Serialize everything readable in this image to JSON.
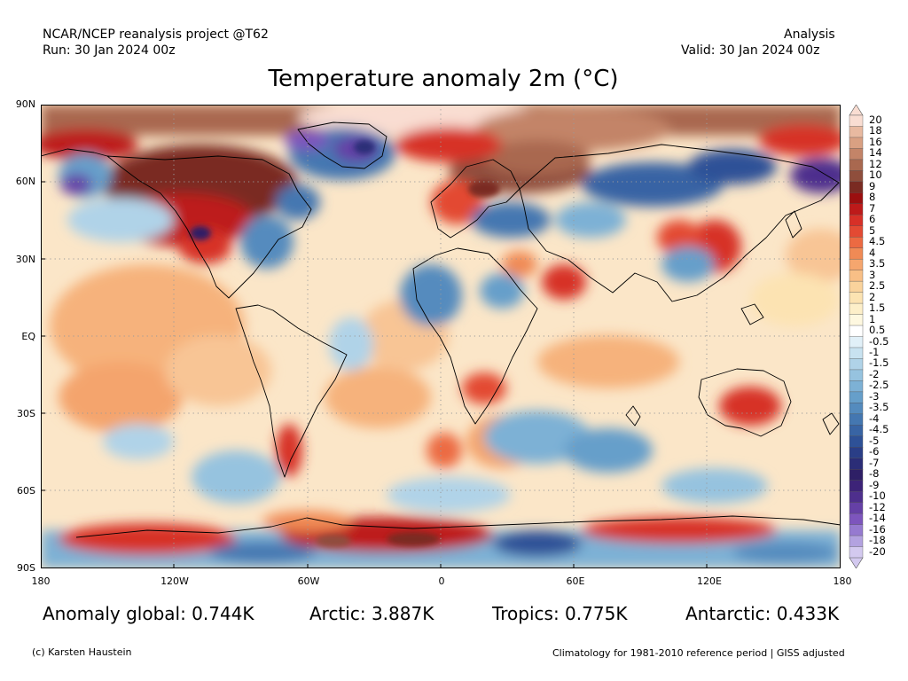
{
  "header": {
    "project": "NCAR/NCEP reanalysis project @T62",
    "run": "Run: 30 Jan 2024 00z",
    "kind": "Analysis",
    "valid": "Valid: 30 Jan 2024 00z",
    "title": "Temperature anomaly 2m (°C)"
  },
  "map": {
    "lat_ticks": [
      "90N",
      "60N",
      "30N",
      "EQ",
      "30S",
      "60S",
      "90S"
    ],
    "lon_ticks": [
      "180",
      "120W",
      "60W",
      "0",
      "60E",
      "120E",
      "180"
    ],
    "lat_range": [
      -90,
      90
    ],
    "lon_range": [
      -180,
      180
    ],
    "gridlines": "dotted every 30°"
  },
  "colorbar": {
    "labels": [
      "20",
      "18",
      "16",
      "14",
      "12",
      "10",
      "9",
      "8",
      "7",
      "6",
      "5",
      "4.5",
      "4",
      "3.5",
      "3",
      "2.5",
      "2",
      "1.5",
      "1",
      "0.5",
      "-0.5",
      "-1",
      "-1.5",
      "-2",
      "-2.5",
      "-3",
      "-3.5",
      "-4",
      "-4.5",
      "-5",
      "-6",
      "-7",
      "-8",
      "-9",
      "-10",
      "-12",
      "-14",
      "-16",
      "-18",
      "-20"
    ],
    "colors": [
      "#f9ddd2",
      "#e8b9a0",
      "#d9a082",
      "#c38468",
      "#a9684f",
      "#8f4e3c",
      "#7a2b22",
      "#9b0f0f",
      "#bd1a1a",
      "#d73027",
      "#e34a33",
      "#ec6a42",
      "#f08a55",
      "#f5a66e",
      "#f8bf86",
      "#fad39c",
      "#fce3b2",
      "#fdefc9",
      "#fef8e0",
      "#ffffff",
      "#e1f0f8",
      "#c8e2f0",
      "#b0d3e8",
      "#96c3df",
      "#7db1d5",
      "#669fca",
      "#548bbe",
      "#4477b1",
      "#3864a4",
      "#2e5197",
      "#2a3e87",
      "#2b2d77",
      "#2e1f66",
      "#3d2378",
      "#4e2f8d",
      "#6540a6",
      "#7d55bd",
      "#967ad0",
      "#b3a2e0",
      "#d3c9ef"
    ]
  },
  "stats": {
    "global": "Anomaly global: 0.744K",
    "arctic": "Arctic: 3.887K",
    "tropics": "Tropics: 0.775K",
    "antarctic": "Antarctic: 0.433K"
  },
  "footer": {
    "credit": "(c) Karsten Haustein",
    "note": "Climatology for 1981-2010 reference period | GISS adjusted"
  }
}
